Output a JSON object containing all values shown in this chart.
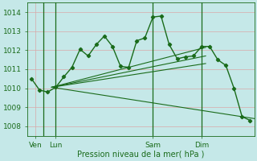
{
  "title": "Pression niveau de la mer( hPa )",
  "bg_color": "#c5e8e8",
  "grid_color": "#d8a8a8",
  "line_color": "#1a6b1a",
  "ylim": [
    1007.5,
    1014.5
  ],
  "yticks": [
    1008,
    1009,
    1010,
    1011,
    1012,
    1013,
    1014
  ],
  "xlabel_fontsize": 7.0,
  "tick_fontsize": 6.5,
  "main_line_x": [
    0,
    1,
    2,
    3,
    4,
    5,
    6,
    7,
    8,
    9,
    10,
    11,
    12,
    13,
    14,
    15,
    16,
    17,
    18,
    19,
    20,
    21,
    22,
    23,
    24,
    25,
    26,
    27
  ],
  "main_line_y": [
    1010.5,
    1009.9,
    1009.8,
    1010.05,
    1010.6,
    1011.1,
    1012.05,
    1011.7,
    1012.3,
    1012.75,
    1012.2,
    1011.15,
    1011.1,
    1012.5,
    1012.65,
    1013.75,
    1013.8,
    1012.3,
    1011.55,
    1011.65,
    1011.7,
    1012.2,
    1012.2,
    1011.5,
    1011.2,
    1010.0,
    1008.5,
    1008.3
  ],
  "xtick_positions": [
    0.5,
    3,
    15,
    21
  ],
  "xtick_labels": [
    "Ven",
    "Lun",
    "Sam",
    "Dim"
  ],
  "vline_positions": [
    1.5,
    3,
    15,
    21
  ],
  "xlim": [
    -0.5,
    27.5
  ],
  "trend_lines": [
    {
      "x0": 2.5,
      "y0": 1010.05,
      "x1": 21.5,
      "y1": 1012.15
    },
    {
      "x0": 2.5,
      "y0": 1010.05,
      "x1": 21.5,
      "y1": 1011.7
    },
    {
      "x0": 2.5,
      "y0": 1010.05,
      "x1": 21.5,
      "y1": 1011.3
    },
    {
      "x0": 2.5,
      "y0": 1010.05,
      "x1": 27.5,
      "y1": 1008.4
    }
  ]
}
